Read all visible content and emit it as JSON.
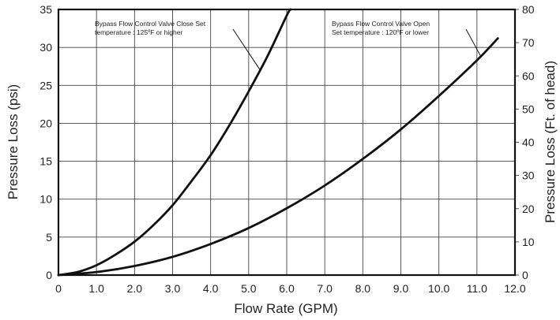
{
  "chart_data": {
    "type": "line",
    "xlabel": "Flow Rate (GPM)",
    "ylabel": "Pressure Loss (psi)",
    "y2label": "Pressure Loss (Ft. of head)",
    "xlim": [
      0,
      12
    ],
    "ylim": [
      0,
      35
    ],
    "y2lim": [
      0,
      80
    ],
    "grid": true,
    "x_ticks": [
      "0",
      "1.0",
      "2.0",
      "3.0",
      "4.0",
      "5.0",
      "6.0",
      "7.0",
      "8.0",
      "9.0",
      "10.0",
      "11.0",
      "12.0"
    ],
    "y_ticks": [
      "0",
      "5",
      "10",
      "15",
      "20",
      "25",
      "30",
      "35"
    ],
    "y2_ticks": [
      "0",
      "10",
      "20",
      "30",
      "40",
      "50",
      "60",
      "70",
      "80"
    ],
    "series": [
      {
        "name": "Bypass Flow Control Valve Close",
        "x": [
          0,
          0.5,
          1.0,
          1.5,
          2.0,
          2.5,
          3.0,
          3.5,
          4.0,
          4.5,
          5.0,
          5.5,
          6.0,
          6.1
        ],
        "y": [
          0,
          0.4,
          1.3,
          2.7,
          4.4,
          6.6,
          9.2,
          12.4,
          15.8,
          19.8,
          24.2,
          28.9,
          34.2,
          35.0
        ]
      },
      {
        "name": "Bypass Flow Control Valve Open",
        "x": [
          0,
          1.0,
          2.0,
          3.0,
          4.0,
          5.0,
          6.0,
          7.0,
          8.0,
          9.0,
          10.0,
          11.0,
          11.55
        ],
        "y": [
          0,
          0.4,
          1.2,
          2.4,
          4.1,
          6.2,
          8.8,
          11.8,
          15.3,
          19.2,
          23.6,
          28.3,
          31.2
        ]
      }
    ],
    "annotations": [
      {
        "series": 0,
        "lines": [
          "Bypass Flow Control Valve Close Set",
          "temperature : 125ºF or higher"
        ]
      },
      {
        "series": 1,
        "lines": [
          "Bypass Flow Control Valve Open",
          "Set temperature : 120ºF or lower"
        ]
      }
    ]
  }
}
